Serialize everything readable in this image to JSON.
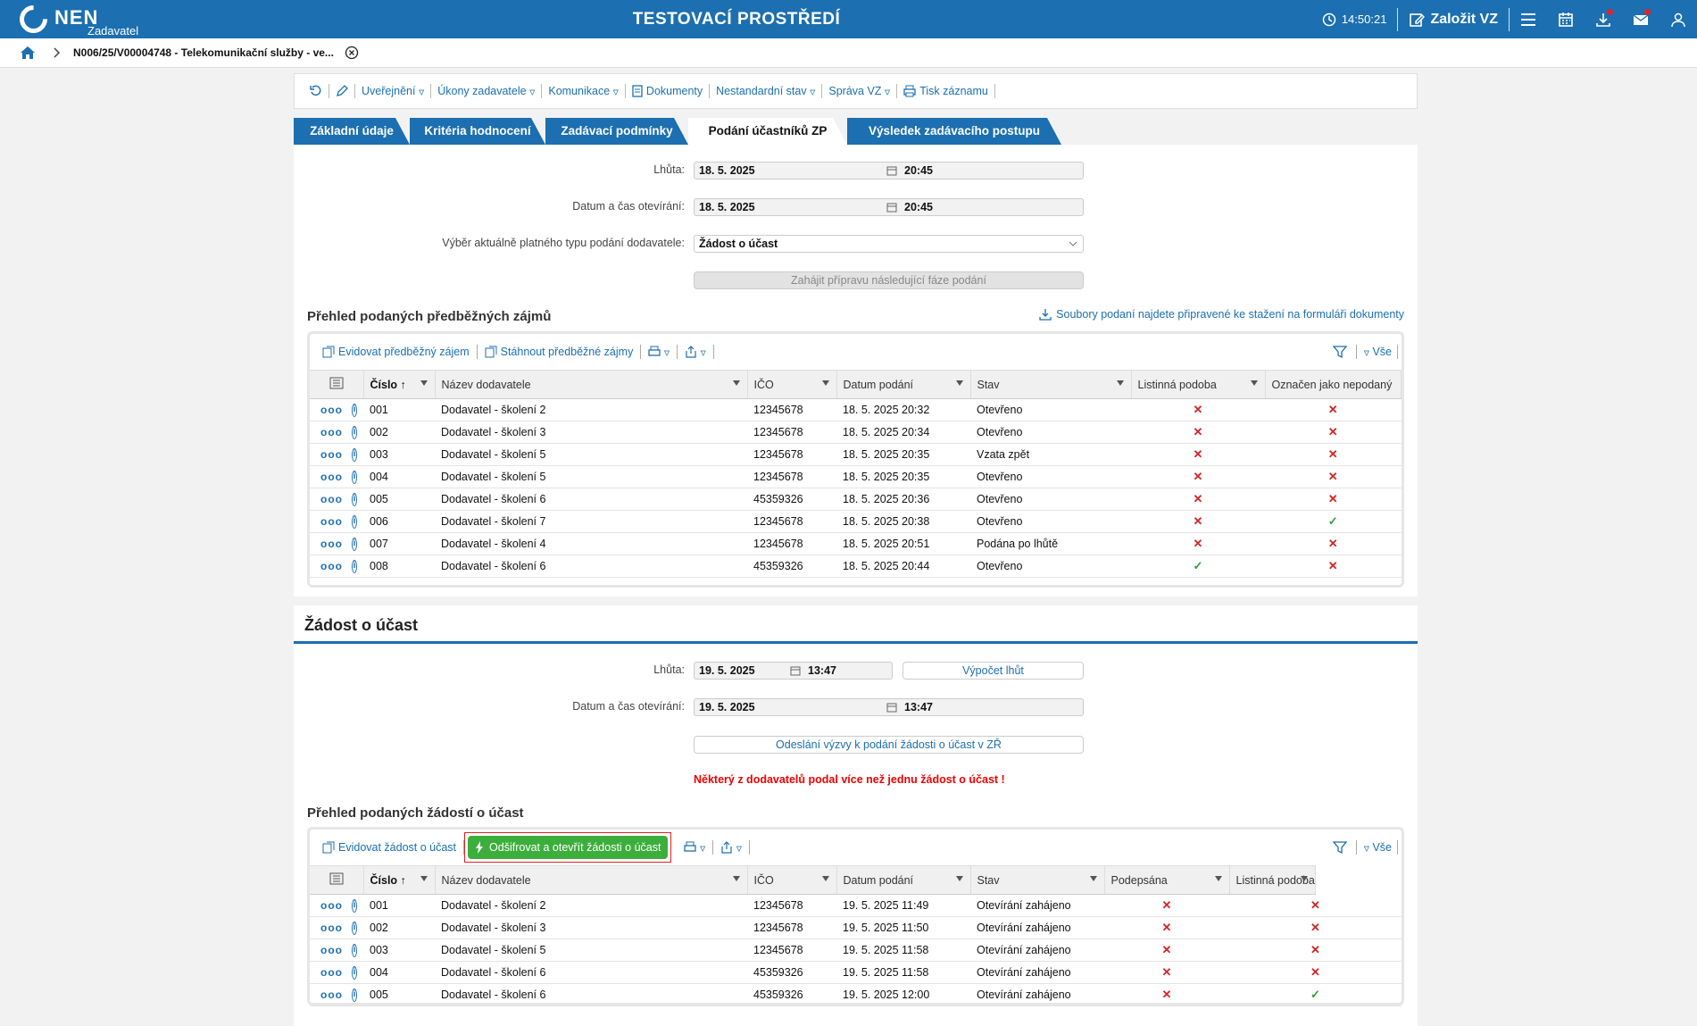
{
  "topbar": {
    "logo": "NEN",
    "logo_sub": "Zadavatel",
    "env_title": "TESTOVACÍ PROSTŘEDÍ",
    "clock": "14:50:21",
    "create_label": "Založit VZ",
    "colors": {
      "bar": "#1c6fb0",
      "badge": "#e0242a"
    }
  },
  "breadcrumb": {
    "item": "N006/25/V00004748 - Telekomunikační služby - ve..."
  },
  "actions": [
    "Uveřejnění",
    "Úkony zadavatele",
    "Komunikace",
    "Dokumenty",
    "Nestandardní stav",
    "Správa VZ",
    "Tisk záznamu"
  ],
  "tabs": [
    "Základní údaje",
    "Kritéria hodnocení",
    "Zadávací podmínky",
    "Podání účastníků ZP",
    "Výsledek zadávacího postupu"
  ],
  "active_tab": "Podání účastníků ZP",
  "phase1": {
    "lhuta_label": "Lhůta:",
    "lhuta_date": "18. 5. 2025",
    "lhuta_time": "20:45",
    "open_label": "Datum a čas otevírání:",
    "open_date": "18. 5. 2025",
    "open_time": "20:45",
    "type_label": "Výběr aktuálně platného typu podání dodavatele:",
    "type_value": "Žádost o účast",
    "next_phase_button": "Zahájit přípravu následující fáze podání",
    "grid_title": "Přehled podaných předběžných zájmů",
    "files_link": "Soubory podaní najdete připravené ke stažení na formuláři dokumenty",
    "tool_register": "Evidovat předběžný zájem",
    "tool_download": "Stáhnout předběžné zájmy",
    "filter_all": "Vše",
    "columns": [
      "Číslo",
      "Název dodavatele",
      "IČO",
      "Datum podání",
      "Stav",
      "Listinná podoba",
      "Označen jako nepodaný"
    ],
    "rows": [
      [
        "001",
        "Dodavatel - školení 2",
        "12345678",
        "18. 5. 2025 20:32",
        "Otevřeno",
        "x",
        "x"
      ],
      [
        "002",
        "Dodavatel - školení 3",
        "12345678",
        "18. 5. 2025 20:34",
        "Otevřeno",
        "x",
        "x"
      ],
      [
        "003",
        "Dodavatel - školení 5",
        "12345678",
        "18. 5. 2025 20:35",
        "Vzata zpět",
        "x",
        "x"
      ],
      [
        "004",
        "Dodavatel - školení 5",
        "12345678",
        "18. 5. 2025 20:35",
        "Otevřeno",
        "x",
        "x"
      ],
      [
        "005",
        "Dodavatel - školení 6",
        "45359326",
        "18. 5. 2025 20:36",
        "Otevřeno",
        "x",
        "x"
      ],
      [
        "006",
        "Dodavatel - školení 7",
        "12345678",
        "18. 5. 2025 20:38",
        "Otevřeno",
        "x",
        "ok"
      ],
      [
        "007",
        "Dodavatel - školení 4",
        "12345678",
        "18. 5. 2025 20:51",
        "Podána po lhůtě",
        "x",
        "x"
      ],
      [
        "008",
        "Dodavatel - školení 6",
        "45359326",
        "18. 5. 2025 20:44",
        "Otevřeno",
        "ok",
        "x"
      ]
    ]
  },
  "phase2": {
    "title": "Žádost o účast",
    "lhuta_label": "Lhůta:",
    "lhuta_date": "19. 5. 2025",
    "lhuta_time": "13:47",
    "calc_button": "Výpočet lhůt",
    "open_label": "Datum a čas otevírání:",
    "open_date": "19. 5. 2025",
    "open_time": "13:47",
    "send_button": "Odeslání výzvy k podání žádosti o účast v ZŘ",
    "warning": "Některý z dodavatelů podal více než jednu žádost o účast !",
    "grid_title": "Přehled podaných žádostí o účast",
    "tool_register": "Evidovat žádost o účast",
    "tool_decrypt": "Odšifrovat a otevřít žádosti o účast",
    "filter_all": "Vše",
    "columns": [
      "Číslo",
      "Název dodavatele",
      "IČO",
      "Datum podání",
      "Stav",
      "Podepsána",
      "Listinná podoba"
    ],
    "rows": [
      [
        "001",
        "Dodavatel - školení 2",
        "12345678",
        "19. 5. 2025 11:49",
        "Otevírání zahájeno",
        "x",
        "x"
      ],
      [
        "002",
        "Dodavatel - školení 3",
        "12345678",
        "19. 5. 2025 11:50",
        "Otevírání zahájeno",
        "x",
        "x"
      ],
      [
        "003",
        "Dodavatel - školení 5",
        "12345678",
        "19. 5. 2025 11:58",
        "Otevírání zahájeno",
        "x",
        "x"
      ],
      [
        "004",
        "Dodavatel - školení 6",
        "45359326",
        "19. 5. 2025 11:58",
        "Otevírání zahájeno",
        "x",
        "x"
      ],
      [
        "005",
        "Dodavatel - školení 6",
        "45359326",
        "19. 5. 2025 12:00",
        "Otevírání zahájeno",
        "x",
        "ok"
      ]
    ]
  }
}
